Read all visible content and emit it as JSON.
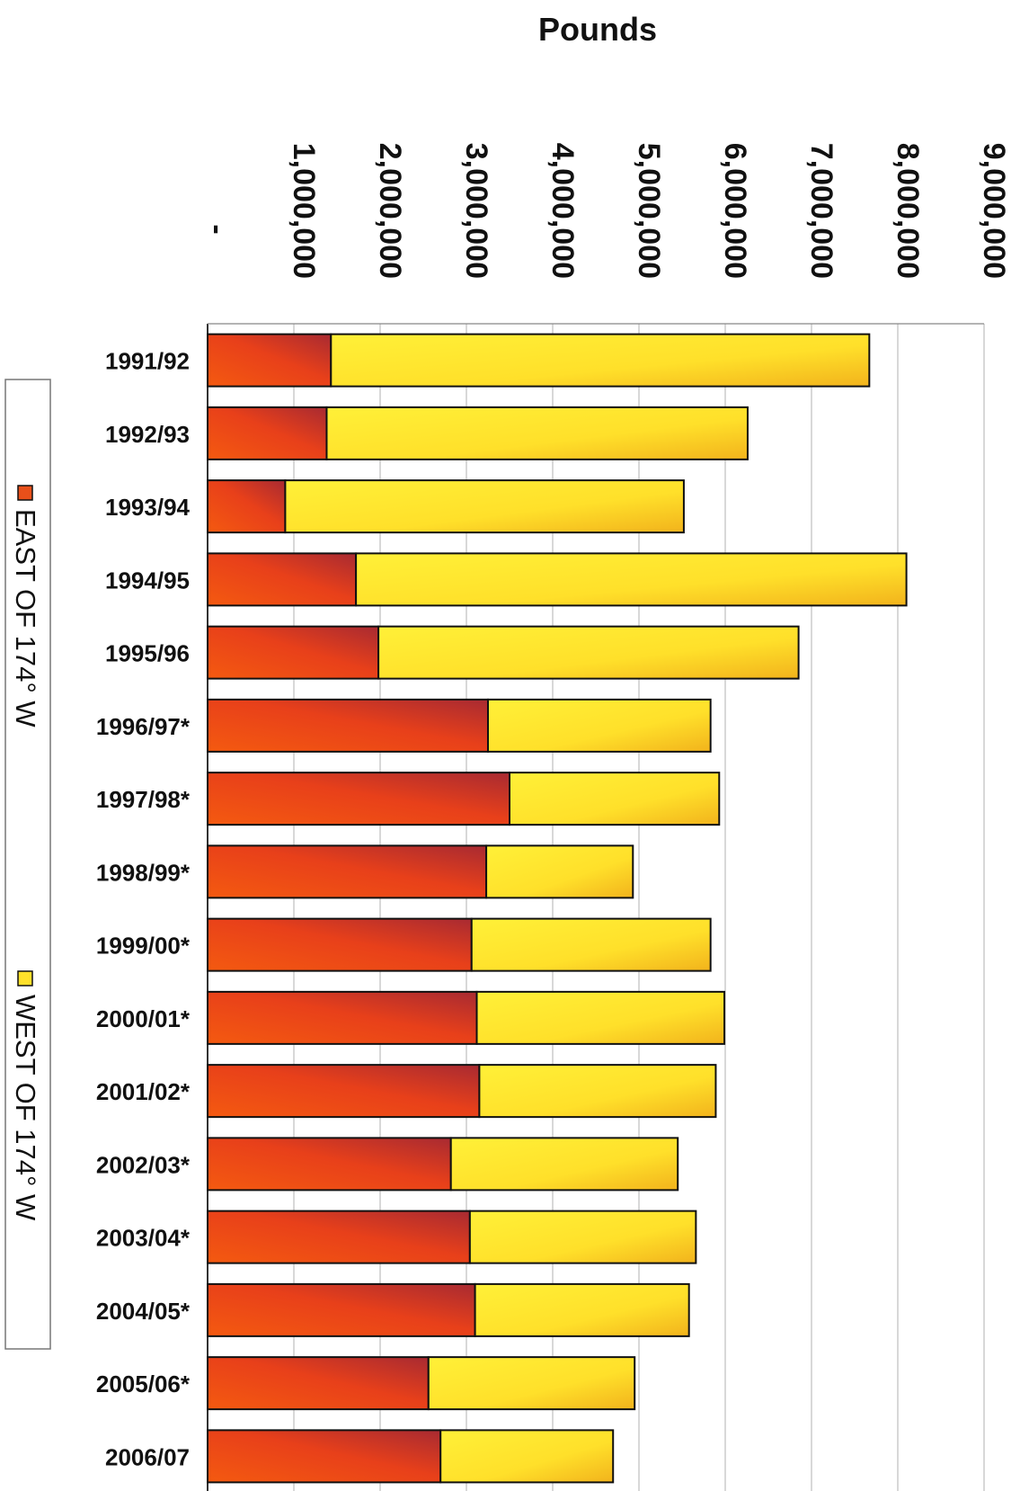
{
  "chart_data": {
    "type": "bar",
    "orientation": "horizontal",
    "stacked": true,
    "xlabel": "Pounds",
    "xlim": [
      0,
      9000000
    ],
    "x_ticks": [
      {
        "value": 0,
        "label": "-"
      },
      {
        "value": 1000000,
        "label": "1,000,000"
      },
      {
        "value": 2000000,
        "label": "2,000,000"
      },
      {
        "value": 3000000,
        "label": "3,000,000"
      },
      {
        "value": 4000000,
        "label": "4,000,000"
      },
      {
        "value": 5000000,
        "label": "5,000,000"
      },
      {
        "value": 6000000,
        "label": "6,000,000"
      },
      {
        "value": 7000000,
        "label": "7,000,000"
      },
      {
        "value": 8000000,
        "label": "8,000,000"
      },
      {
        "value": 9000000,
        "label": "9,000,000"
      }
    ],
    "categories": [
      "1991/92",
      "1992/93",
      "1993/94",
      "1994/95",
      "1995/96",
      "1996/97*",
      "1997/98*",
      "1998/99*",
      "1999/00*",
      "2000/01*",
      "2001/02*",
      "2002/03*",
      "2003/04*",
      "2004/05*",
      "2005/06*",
      "2006/07"
    ],
    "series": [
      {
        "name": "EAST OF 174° W",
        "color": "#e8501a",
        "values": [
          1430000,
          1380000,
          900000,
          1720000,
          1980000,
          3250000,
          3500000,
          3230000,
          3060000,
          3120000,
          3150000,
          2820000,
          3040000,
          3100000,
          2560000,
          2700000
        ]
      },
      {
        "name": "WEST OF 174° W",
        "color": "#ffe02a",
        "values": [
          6240000,
          4880000,
          4620000,
          6380000,
          4870000,
          2580000,
          2430000,
          1700000,
          2770000,
          2870000,
          2740000,
          2630000,
          2620000,
          2480000,
          2390000,
          2000000
        ]
      }
    ],
    "grid": true,
    "legend": "right",
    "orientation_note": "rotated"
  }
}
